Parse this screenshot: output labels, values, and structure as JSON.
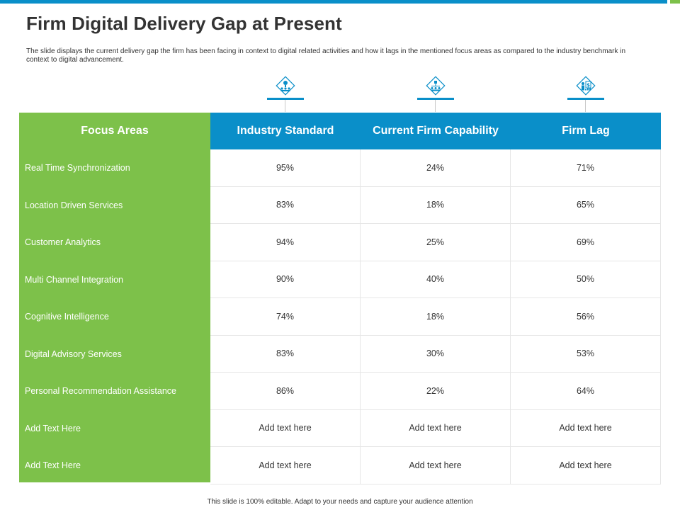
{
  "slide": {
    "title": "Firm Digital Delivery Gap at Present",
    "description": "The slide displays the current delivery gap the firm has been facing in context to digital related activities and how it lags in the mentioned focus areas as compared to the industry benchmark in context to digital advancement.",
    "footer": "This slide is 100% editable. Adapt to your needs and capture your audience attention"
  },
  "colors": {
    "accent_blue": "#0a8fc9",
    "accent_green": "#7dc14a"
  },
  "icons": [
    "idea-network-icon",
    "org-chart-icon",
    "presenter-dollar-icon"
  ],
  "table": {
    "headers": [
      "Focus Areas",
      "Industry Standard",
      "Current Firm Capability",
      "Firm Lag"
    ],
    "rows": [
      {
        "label": "Real Time Synchronization",
        "industry": "95%",
        "firm": "24%",
        "lag": "71%"
      },
      {
        "label": "Location Driven  Services",
        "industry": "83%",
        "firm": "18%",
        "lag": "65%"
      },
      {
        "label": "Customer Analytics",
        "industry": "94%",
        "firm": "25%",
        "lag": "69%"
      },
      {
        "label": "Multi Channel Integration",
        "industry": "90%",
        "firm": "40%",
        "lag": "50%"
      },
      {
        "label": "Cognitive  Intelligence",
        "industry": "74%",
        "firm": "18%",
        "lag": "56%"
      },
      {
        "label": "Digital Advisory Services",
        "industry": "83%",
        "firm": "30%",
        "lag": "53%"
      },
      {
        "label": "Personal Recommendation  Assistance",
        "industry": "86%",
        "firm": "22%",
        "lag": "64%"
      },
      {
        "label": "Add Text Here",
        "industry": "Add text here",
        "firm": "Add text here",
        "lag": "Add text here"
      },
      {
        "label": "Add Text Here",
        "industry": "Add text here",
        "firm": "Add text here",
        "lag": "Add text here"
      }
    ]
  }
}
